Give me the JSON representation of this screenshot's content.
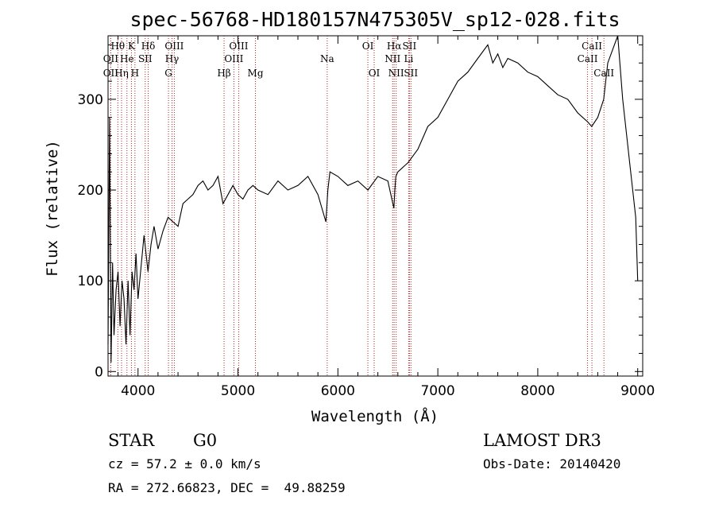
{
  "chart_data": {
    "type": "line",
    "title": "spec-56768-HD180157N475305V_sp12-028.fits",
    "xlabel": "Wavelength (Å)",
    "ylabel": "Flux (relative)",
    "xlim": [
      3700,
      9050
    ],
    "ylim": [
      -5,
      370
    ],
    "xticks": [
      4000,
      5000,
      6000,
      7000,
      8000,
      9000
    ],
    "yticks": [
      0,
      100,
      200,
      300
    ],
    "grid": false,
    "series": [
      {
        "name": "flux",
        "color": "#000000",
        "x": [
          3700,
          3715,
          3730,
          3745,
          3760,
          3780,
          3800,
          3820,
          3840,
          3860,
          3880,
          3900,
          3920,
          3940,
          3960,
          3980,
          4000,
          4030,
          4060,
          4100,
          4130,
          4160,
          4200,
          4250,
          4300,
          4350,
          4400,
          4450,
          4500,
          4550,
          4600,
          4650,
          4700,
          4750,
          4800,
          4850,
          4900,
          4950,
          5000,
          5050,
          5100,
          5150,
          5200,
          5300,
          5400,
          5500,
          5600,
          5700,
          5800,
          5880,
          5900,
          5920,
          6000,
          6100,
          6200,
          6300,
          6400,
          6500,
          6560,
          6570,
          6580,
          6600,
          6700,
          6800,
          6900,
          7000,
          7100,
          7200,
          7300,
          7400,
          7500,
          7550,
          7600,
          7650,
          7700,
          7800,
          7900,
          8000,
          8100,
          8200,
          8300,
          8400,
          8450,
          8500,
          8540,
          8600,
          8660,
          8700,
          8750,
          8800,
          8850,
          8900,
          8920,
          8950,
          8980,
          9000
        ],
        "y": [
          30,
          280,
          10,
          120,
          40,
          90,
          110,
          50,
          100,
          80,
          30,
          100,
          40,
          110,
          90,
          130,
          80,
          115,
          150,
          110,
          140,
          160,
          135,
          155,
          170,
          165,
          160,
          185,
          190,
          195,
          205,
          210,
          200,
          205,
          215,
          185,
          195,
          205,
          195,
          190,
          200,
          205,
          200,
          195,
          210,
          200,
          205,
          215,
          195,
          165,
          200,
          220,
          215,
          205,
          210,
          200,
          215,
          210,
          180,
          200,
          215,
          220,
          230,
          245,
          270,
          280,
          300,
          320,
          330,
          345,
          360,
          340,
          350,
          335,
          345,
          340,
          330,
          325,
          315,
          305,
          300,
          285,
          280,
          275,
          270,
          280,
          300,
          340,
          355,
          370,
          300,
          250,
          230,
          200,
          170,
          100
        ]
      }
    ],
    "lines": [
      {
        "label": "Hθ",
        "x": 3798,
        "row": 1
      },
      {
        "label": "OII",
        "x": 3727,
        "row": 2
      },
      {
        "label": "OII",
        "x": 3727,
        "row": 3
      },
      {
        "label": "K",
        "x": 3934,
        "row": 1
      },
      {
        "label": "He",
        "x": 3889,
        "row": 2
      },
      {
        "label": "Hη",
        "x": 3835,
        "row": 3
      },
      {
        "label": "H",
        "x": 3969,
        "row": 3
      },
      {
        "label": "SII",
        "x": 4072,
        "row": 2
      },
      {
        "label": "Hδ",
        "x": 4102,
        "row": 1
      },
      {
        "label": "OIII",
        "x": 4363,
        "row": 1
      },
      {
        "label": "Hγ",
        "x": 4340,
        "row": 2
      },
      {
        "label": "G",
        "x": 4305,
        "row": 3
      },
      {
        "label": "OIII",
        "x": 5007,
        "row": 1
      },
      {
        "label": "OIII",
        "x": 4959,
        "row": 2
      },
      {
        "label": "Hβ",
        "x": 4861,
        "row": 3
      },
      {
        "label": "Mg",
        "x": 5175,
        "row": 3
      },
      {
        "label": "Na",
        "x": 5893,
        "row": 2
      },
      {
        "label": "OI",
        "x": 6300,
        "row": 1
      },
      {
        "label": "OI",
        "x": 6363,
        "row": 3
      },
      {
        "label": "Hα",
        "x": 6563,
        "row": 1
      },
      {
        "label": "SII",
        "x": 6716,
        "row": 1
      },
      {
        "label": "NII",
        "x": 6548,
        "row": 2
      },
      {
        "label": "Li",
        "x": 6708,
        "row": 2
      },
      {
        "label": "NII",
        "x": 6583,
        "row": 3
      },
      {
        "label": "SII",
        "x": 6731,
        "row": 3
      },
      {
        "label": "CaII",
        "x": 8542,
        "row": 1
      },
      {
        "label": "CaII",
        "x": 8498,
        "row": 2
      },
      {
        "label": "CaII",
        "x": 8662,
        "row": 3
      }
    ],
    "line_color": "#b22222"
  },
  "info": {
    "obj_class": "STAR",
    "subclass": "G0",
    "survey": "LAMOST DR3",
    "redshift": "cz = 57.2 ± 0.0 km/s",
    "obs_date": "Obs-Date: 20140420",
    "coords": "RA = 272.66823, DEC =  49.88259"
  }
}
